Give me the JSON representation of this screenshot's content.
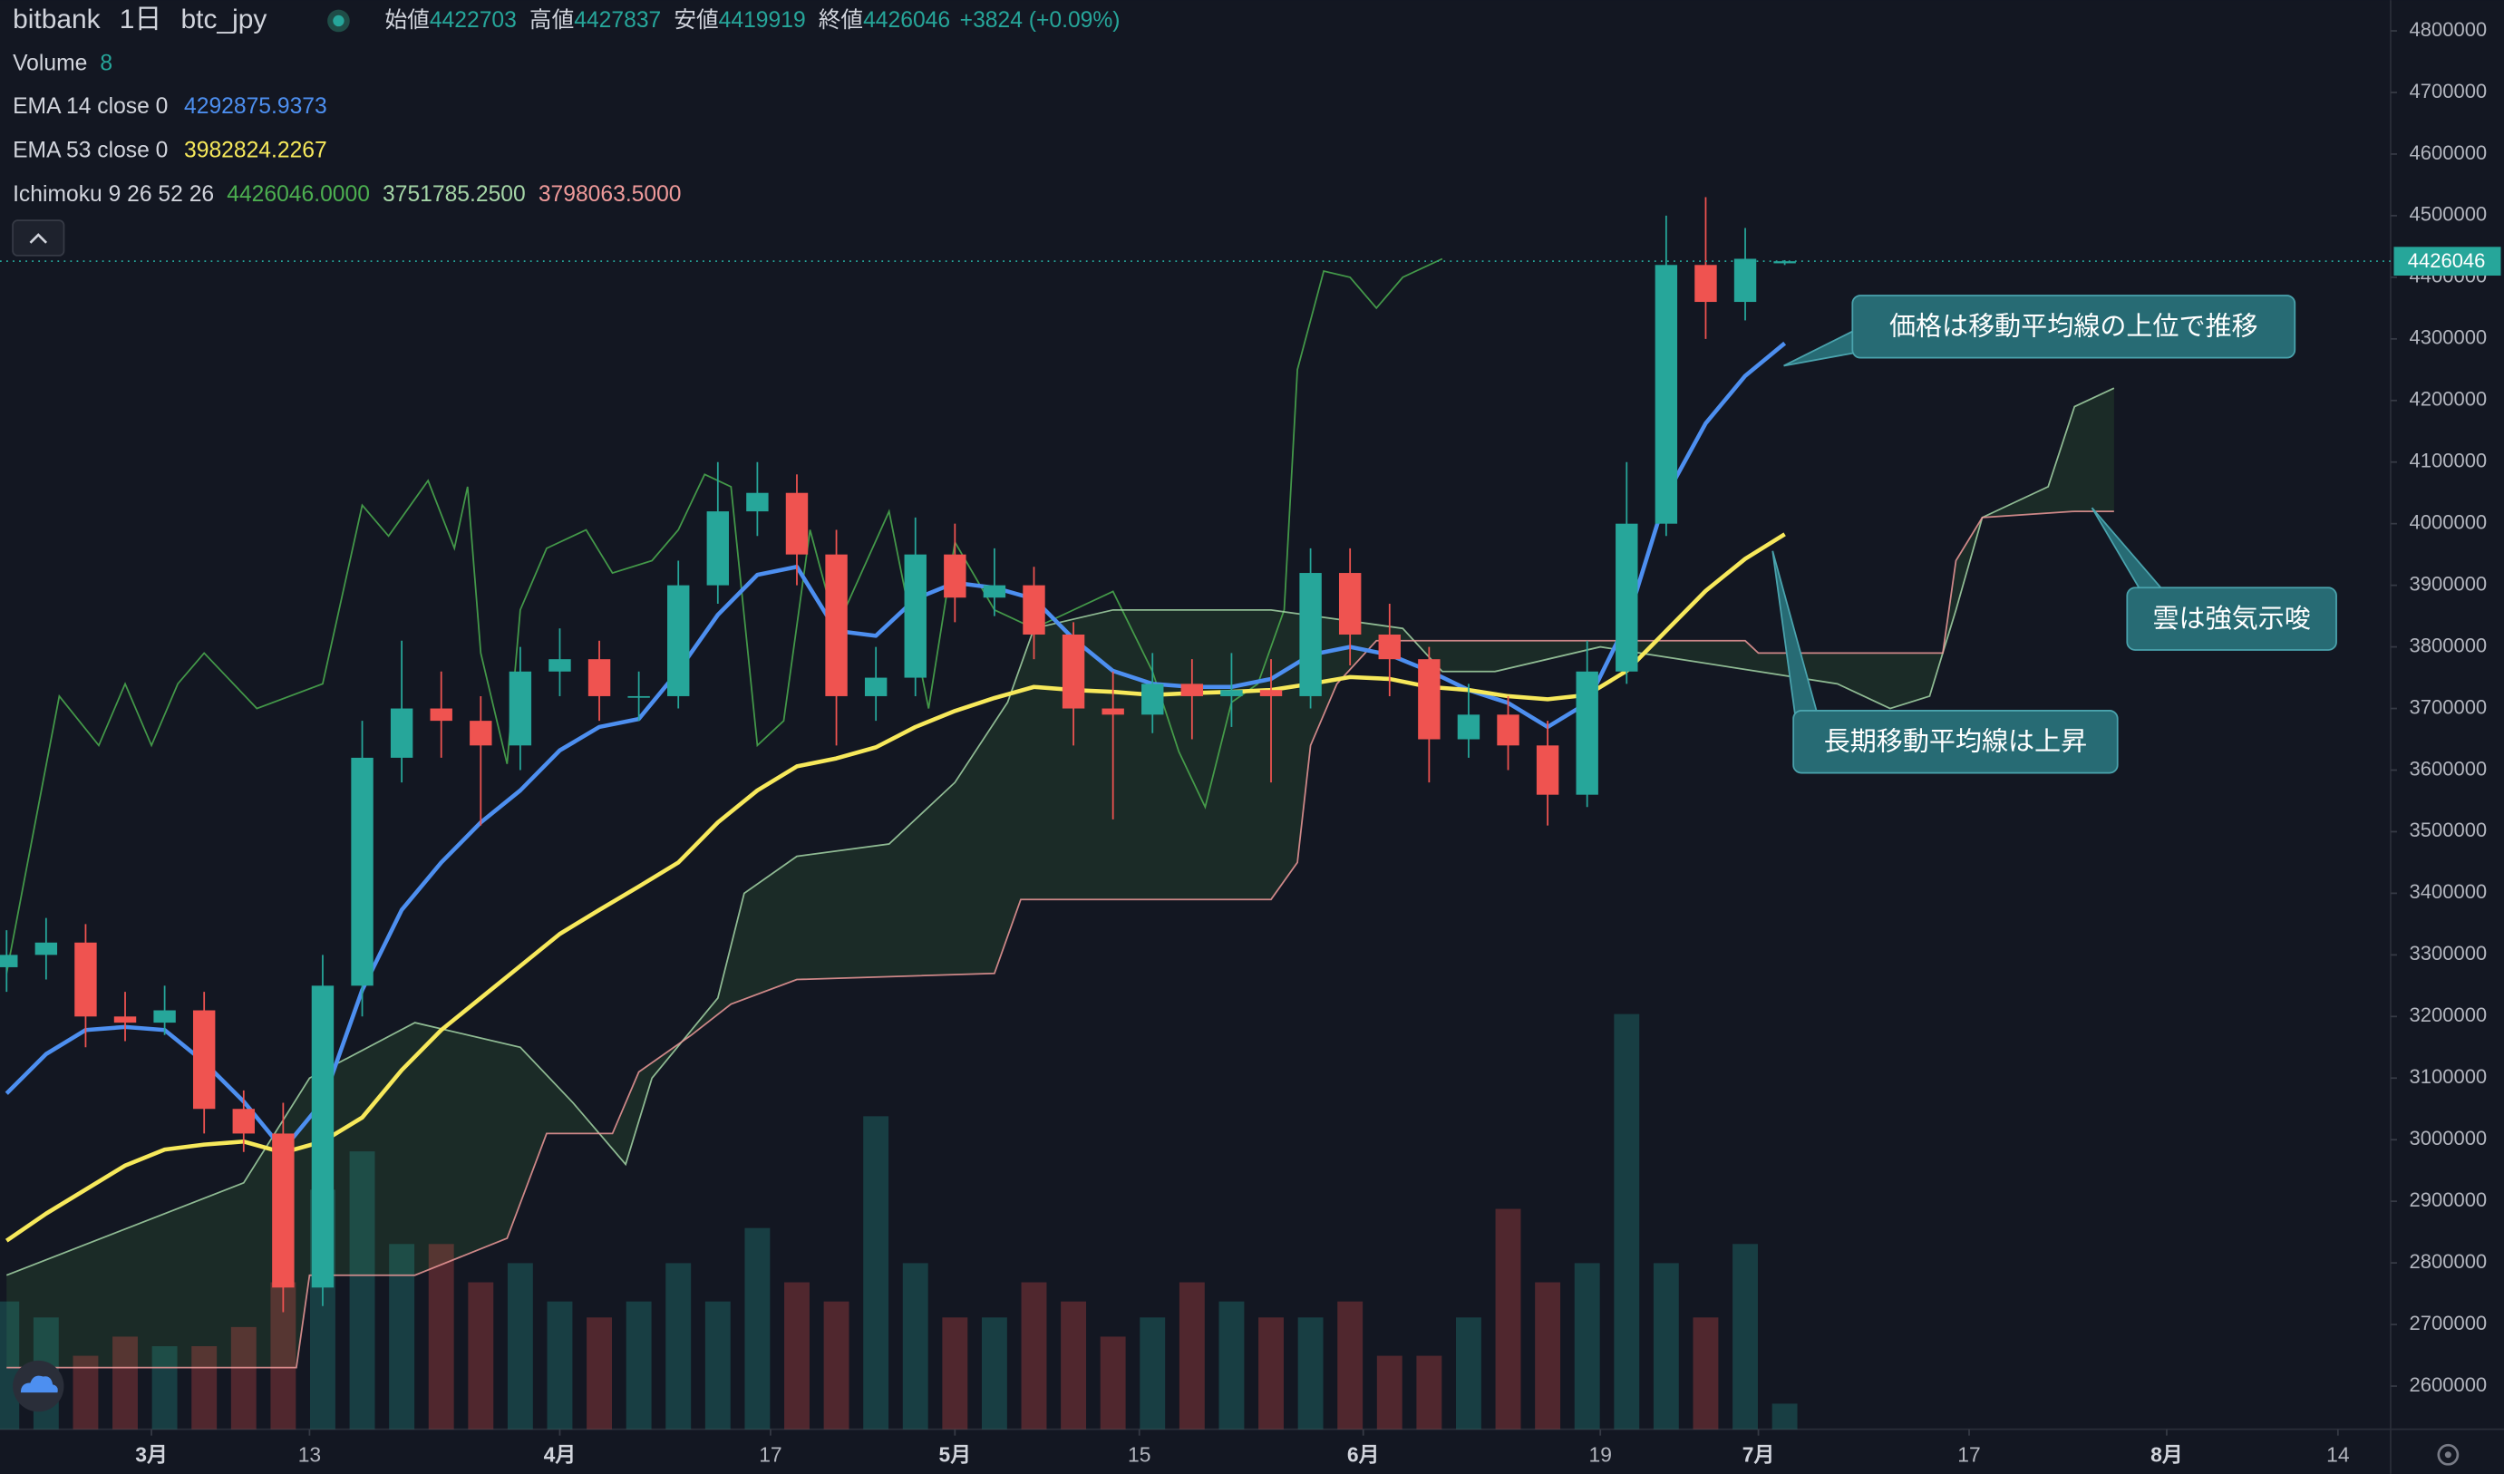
{
  "chart_data": {
    "type": "candlestick",
    "title": "bitbank",
    "interval": "1日",
    "symbol": "btc_jpy",
    "ohlc": [
      {
        "label": "始値",
        "value": 4422703
      },
      {
        "label": "高値",
        "value": 4427837
      },
      {
        "label": "安値",
        "value": 4419919
      },
      {
        "label": "終値",
        "value": 4426046
      }
    ],
    "change": "+3824 (+0.09%)",
    "up_color": "#26a69a",
    "down_color": "#ef5350",
    "xlim": [
      -11.5,
      170
    ],
    "ylim": [
      2530000,
      4850000
    ],
    "volume_ylim": [
      0,
      150
    ],
    "xticks": [
      {
        "value": 0,
        "label": "3月"
      },
      {
        "value": 12,
        "label": "13"
      },
      {
        "value": 31,
        "label": "4月"
      },
      {
        "value": 47,
        "label": "17"
      },
      {
        "value": 61,
        "label": "5月"
      },
      {
        "value": 75,
        "label": "15"
      },
      {
        "value": 92,
        "label": "6月"
      },
      {
        "value": 110,
        "label": "19"
      },
      {
        "value": 122,
        "label": "7月"
      },
      {
        "value": 138,
        "label": "17"
      },
      {
        "value": 153,
        "label": "8月"
      },
      {
        "value": 166,
        "label": "14"
      }
    ],
    "yticks": [
      2600000,
      2700000,
      2800000,
      2900000,
      3000000,
      3100000,
      3200000,
      3300000,
      3400000,
      3500000,
      3600000,
      3700000,
      3800000,
      3900000,
      4000000,
      4100000,
      4200000,
      4300000,
      4400000,
      4500000,
      4600000,
      4700000,
      4800000
    ],
    "x": [
      -11,
      -8,
      -5,
      -2,
      1,
      4,
      7,
      10,
      13,
      16,
      19,
      22,
      25,
      28,
      31,
      34,
      37,
      40,
      43,
      46,
      49,
      52,
      55,
      58,
      61,
      64,
      67,
      70,
      73,
      76,
      79,
      82,
      85,
      88,
      91,
      94,
      97,
      100,
      103,
      106,
      109,
      112,
      115,
      118,
      121,
      124
    ],
    "open": [
      3280000,
      3300000,
      3320000,
      3200000,
      3190000,
      3210000,
      3050000,
      3010000,
      2760000,
      3250000,
      3620000,
      3700000,
      3680000,
      3640000,
      3760000,
      3780000,
      3720000,
      3720000,
      3900000,
      4020000,
      4050000,
      3950000,
      3720000,
      3750000,
      3950000,
      3880000,
      3900000,
      3820000,
      3700000,
      3690000,
      3740000,
      3720000,
      3730000,
      3720000,
      3920000,
      3820000,
      3780000,
      3650000,
      3690000,
      3640000,
      3560000,
      3760000,
      4000000,
      4420000,
      4360000,
      4422703
    ],
    "high": [
      3340000,
      3360000,
      3350000,
      3240000,
      3250000,
      3240000,
      3080000,
      3060000,
      3300000,
      3680000,
      3810000,
      3760000,
      3720000,
      3800000,
      3830000,
      3810000,
      3760000,
      3940000,
      4100000,
      4100000,
      4080000,
      3990000,
      3800000,
      4010000,
      4000000,
      3960000,
      3930000,
      3840000,
      3760000,
      3790000,
      3780000,
      3790000,
      3780000,
      3960000,
      3960000,
      3870000,
      3800000,
      3740000,
      3720000,
      3680000,
      3810000,
      4100000,
      4500000,
      4530000,
      4480000,
      4427837
    ],
    "low": [
      3240000,
      3260000,
      3150000,
      3160000,
      3170000,
      3010000,
      2980000,
      2720000,
      2730000,
      3200000,
      3580000,
      3620000,
      3510000,
      3600000,
      3720000,
      3680000,
      3680000,
      3700000,
      3870000,
      3980000,
      3900000,
      3640000,
      3680000,
      3720000,
      3840000,
      3850000,
      3780000,
      3640000,
      3520000,
      3660000,
      3650000,
      3670000,
      3580000,
      3700000,
      3770000,
      3720000,
      3580000,
      3620000,
      3600000,
      3510000,
      3540000,
      3740000,
      3980000,
      4300000,
      4330000,
      4419919
    ],
    "close": [
      3300000,
      3320000,
      3200000,
      3190000,
      3210000,
      3050000,
      3010000,
      2760000,
      3250000,
      3620000,
      3700000,
      3680000,
      3640000,
      3760000,
      3780000,
      3720000,
      3720000,
      3900000,
      4020000,
      4050000,
      3950000,
      3720000,
      3750000,
      3950000,
      3880000,
      3900000,
      3820000,
      3700000,
      3690000,
      3740000,
      3720000,
      3730000,
      3720000,
      3920000,
      3820000,
      3780000,
      3650000,
      3690000,
      3640000,
      3560000,
      3760000,
      4000000,
      4420000,
      4360000,
      4430000,
      4426046
    ],
    "volume": {
      "name": "Volume",
      "legend_value": 8,
      "values": [
        40,
        35,
        23,
        29,
        26,
        26,
        32,
        46,
        75,
        87,
        58,
        58,
        46,
        52,
        40,
        35,
        40,
        52,
        40,
        63,
        46,
        40,
        98,
        52,
        35,
        35,
        46,
        40,
        29,
        35,
        46,
        40,
        35,
        35,
        40,
        23,
        23,
        35,
        69,
        46,
        52,
        130,
        52,
        35,
        58,
        8
      ]
    },
    "series": [
      {
        "name": "EMA 14 close 0",
        "color": "#4d8ff0",
        "legend_value": 4292875.9373,
        "values": [
          3075000,
          3139000,
          3178000,
          3183000,
          3178000,
          3126000,
          3062000,
          2984000,
          3062000,
          3243000,
          3373000,
          3450000,
          3515000,
          3567000,
          3632000,
          3670000,
          3683000,
          3761000,
          3852000,
          3917000,
          3930000,
          3826000,
          3818000,
          3878000,
          3904000,
          3896000,
          3878000,
          3813000,
          3761000,
          3740000,
          3735000,
          3735000,
          3748000,
          3787000,
          3800000,
          3787000,
          3761000,
          3730000,
          3709000,
          3670000,
          3709000,
          3839000,
          4046000,
          4163000,
          4240000,
          4292875.9373
        ]
      },
      {
        "name": "EMA 53 close 0",
        "color": "#f7e95b",
        "legend_value": 3982824.2267,
        "values": [
          2836000,
          2880000,
          2919000,
          2958000,
          2984000,
          2992000,
          2997000,
          2979000,
          2997000,
          3036000,
          3113000,
          3178000,
          3230000,
          3282000,
          3334000,
          3373000,
          3411000,
          3450000,
          3515000,
          3567000,
          3606000,
          3619000,
          3637000,
          3670000,
          3696000,
          3717000,
          3735000,
          3730000,
          3727000,
          3722000,
          3725000,
          3727000,
          3730000,
          3740000,
          3751000,
          3748000,
          3735000,
          3730000,
          3720000,
          3715000,
          3722000,
          3761000,
          3826000,
          3891000,
          3943000,
          3982824.2267
        ]
      }
    ],
    "ichimoku": {
      "name": "Ichimoku 9 26 52 26",
      "cloud_color": "#1f3329",
      "lines": [
        {
          "color": "#4caf50",
          "legend_value": {
            "value": 4426046,
            "label": "4426046.0000"
          },
          "x": [
            -11,
            -7,
            -4,
            -2,
            0,
            2,
            4,
            8,
            13,
            16,
            18,
            21,
            23,
            24,
            25,
            27,
            28,
            30,
            33,
            35,
            38,
            40,
            42,
            44,
            46,
            48,
            50,
            52,
            56,
            59,
            61,
            64,
            67,
            69,
            73,
            76,
            78,
            80,
            82,
            84,
            86,
            87,
            89,
            91,
            93,
            95,
            98
          ],
          "values": [
            3270000,
            3720000,
            3640000,
            3740000,
            3640000,
            3740000,
            3790000,
            3700000,
            3740000,
            4030000,
            3980000,
            4070000,
            3960000,
            4060000,
            3790000,
            3610000,
            3860000,
            3960000,
            3990000,
            3920000,
            3940000,
            3990000,
            4080000,
            4060000,
            3640000,
            3680000,
            3990000,
            3830000,
            4020000,
            3700000,
            3970000,
            3860000,
            3830000,
            3850000,
            3890000,
            3760000,
            3630000,
            3540000,
            3710000,
            3740000,
            3860000,
            4250000,
            4410000,
            4400000,
            4350000,
            4400000,
            4430000
          ]
        },
        {
          "color": "#a5d6a7",
          "legend_value": {
            "value": 3751785.25,
            "label": "3751785.2500"
          },
          "x": [
            -11,
            1,
            7,
            12,
            20,
            28,
            32,
            36,
            38,
            43,
            45,
            49,
            56,
            61,
            65,
            67,
            73,
            85,
            95,
            98,
            102,
            110,
            122,
            128,
            132,
            135,
            137,
            139,
            144,
            146,
            149
          ],
          "values": [
            2780000,
            2880000,
            2930000,
            3100000,
            3190000,
            3150000,
            3060000,
            2960000,
            3100000,
            3230000,
            3400000,
            3460000,
            3480000,
            3580000,
            3710000,
            3830000,
            3860000,
            3860000,
            3830000,
            3760000,
            3760000,
            3800000,
            3760000,
            3740000,
            3700000,
            3720000,
            3860000,
            4010000,
            4060000,
            4190000,
            4220000
          ]
        },
        {
          "color": "#ef9a9a",
          "legend_value": {
            "value": 3798063.5,
            "label": "3798063.5000"
          },
          "x": [
            -11,
            11,
            12,
            20,
            27,
            30,
            35,
            37,
            41,
            44,
            49,
            64,
            66,
            85,
            87,
            88,
            90,
            93,
            121,
            122,
            136,
            137,
            139,
            146,
            149
          ],
          "values": [
            2630000,
            2630000,
            2780000,
            2780000,
            2840000,
            3010000,
            3010000,
            3110000,
            3170000,
            3220000,
            3260000,
            3270000,
            3390000,
            3390000,
            3450000,
            3640000,
            3740000,
            3810000,
            3810000,
            3790000,
            3790000,
            3940000,
            4010000,
            4020000,
            4020000
          ]
        }
      ]
    },
    "annotations": [
      {
        "text": "価格は移動平均線の上位で推移"
      },
      {
        "text": "雲は強気示唆"
      },
      {
        "text": "長期移動平均線は上昇"
      }
    ]
  }
}
